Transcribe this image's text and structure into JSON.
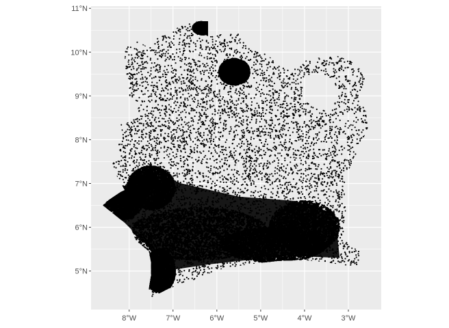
{
  "map": {
    "panel_background": "#ebebeb",
    "grid_color": "#ffffff",
    "point_color": "#000000",
    "x_axis": {
      "ticks": [
        {
          "value": -8,
          "label": "8°W"
        },
        {
          "value": -7,
          "label": "7°W"
        },
        {
          "value": -6,
          "label": "6°W"
        },
        {
          "value": -5,
          "label": "5°W"
        },
        {
          "value": -4,
          "label": "4°W"
        },
        {
          "value": -3,
          "label": "3°W"
        }
      ]
    },
    "y_axis": {
      "ticks": [
        {
          "value": 5,
          "label": "5°N"
        },
        {
          "value": 6,
          "label": "6°N"
        },
        {
          "value": 7,
          "label": "7°N"
        },
        {
          "value": 8,
          "label": "8°N"
        },
        {
          "value": 9,
          "label": "9°N"
        },
        {
          "value": 10,
          "label": "10°N"
        },
        {
          "value": 11,
          "label": "11°N"
        }
      ]
    },
    "extent": {
      "lon_min": -8.87,
      "lon_max": -2.25,
      "lat_min": 4.12,
      "lat_max": 11.05
    },
    "outline_lonlat": [
      [
        -7.52,
        4.38
      ],
      [
        -7.1,
        4.6
      ],
      [
        -6.5,
        4.8
      ],
      [
        -6.0,
        5.02
      ],
      [
        -5.3,
        5.15
      ],
      [
        -4.6,
        5.23
      ],
      [
        -4.0,
        5.25
      ],
      [
        -3.5,
        5.2
      ],
      [
        -3.1,
        5.13
      ],
      [
        -2.75,
        5.12
      ],
      [
        -2.75,
        5.48
      ],
      [
        -2.95,
        5.55
      ],
      [
        -3.1,
        5.95
      ],
      [
        -3.05,
        6.45
      ],
      [
        -3.1,
        6.9
      ],
      [
        -3.0,
        7.3
      ],
      [
        -2.85,
        7.55
      ],
      [
        -2.7,
        7.95
      ],
      [
        -2.55,
        8.25
      ],
      [
        -2.6,
        8.65
      ],
      [
        -2.75,
        8.95
      ],
      [
        -2.7,
        9.15
      ],
      [
        -2.6,
        9.45
      ],
      [
        -2.72,
        9.6
      ],
      [
        -2.95,
        9.8
      ],
      [
        -3.3,
        9.93
      ],
      [
        -3.7,
        9.87
      ],
      [
        -4.0,
        9.8
      ],
      [
        -4.3,
        9.6
      ],
      [
        -4.6,
        9.7
      ],
      [
        -4.85,
        9.95
      ],
      [
        -5.2,
        10.05
      ],
      [
        -5.5,
        10.42
      ],
      [
        -5.85,
        10.42
      ],
      [
        -6.2,
        10.35
      ],
      [
        -6.2,
        10.7
      ],
      [
        -6.6,
        10.72
      ],
      [
        -6.85,
        10.6
      ],
      [
        -7.1,
        10.4
      ],
      [
        -7.35,
        10.35
      ],
      [
        -7.55,
        10.1
      ],
      [
        -7.8,
        10.25
      ],
      [
        -8.1,
        10.12
      ],
      [
        -8.1,
        9.6
      ],
      [
        -8.0,
        9.3
      ],
      [
        -8.0,
        9.0
      ],
      [
        -7.8,
        8.85
      ],
      [
        -7.8,
        8.55
      ],
      [
        -8.0,
        8.4
      ],
      [
        -8.2,
        8.38
      ],
      [
        -8.15,
        8.1
      ],
      [
        -8.25,
        7.9
      ],
      [
        -8.2,
        7.65
      ],
      [
        -8.32,
        7.55
      ],
      [
        -8.4,
        7.5
      ],
      [
        -8.3,
        7.2
      ],
      [
        -8.1,
        6.85
      ],
      [
        -8.2,
        6.8
      ],
      [
        -8.5,
        6.6
      ],
      [
        -8.6,
        6.5
      ],
      [
        -8.35,
        6.3
      ],
      [
        -8.1,
        6.1
      ],
      [
        -7.95,
        5.95
      ],
      [
        -7.85,
        5.7
      ],
      [
        -7.55,
        5.45
      ],
      [
        -7.5,
        5.2
      ],
      [
        -7.5,
        4.9
      ],
      [
        -7.55,
        4.6
      ]
    ],
    "inner_void_lonlat": [
      [
        -4.05,
        9.4
      ],
      [
        -3.75,
        9.55
      ],
      [
        -3.4,
        9.42
      ],
      [
        -3.2,
        9.05
      ],
      [
        -3.35,
        8.75
      ],
      [
        -3.75,
        8.7
      ],
      [
        -4.05,
        8.95
      ]
    ],
    "dense_zones_lonlat": [
      [
        -8.3,
        6.55,
        0.6,
        0.4
      ],
      [
        -7.5,
        6.9,
        0.55,
        0.5
      ],
      [
        -6.4,
        5.85,
        1.6,
        0.6
      ],
      [
        -4.7,
        5.6,
        1.2,
        0.4
      ],
      [
        -4.0,
        6.0,
        0.8,
        0.6
      ],
      [
        -5.6,
        9.55,
        0.35,
        0.3
      ],
      [
        -6.3,
        10.55,
        0.25,
        0.15
      ],
      [
        -7.3,
        5.0,
        0.35,
        0.5
      ]
    ]
  }
}
